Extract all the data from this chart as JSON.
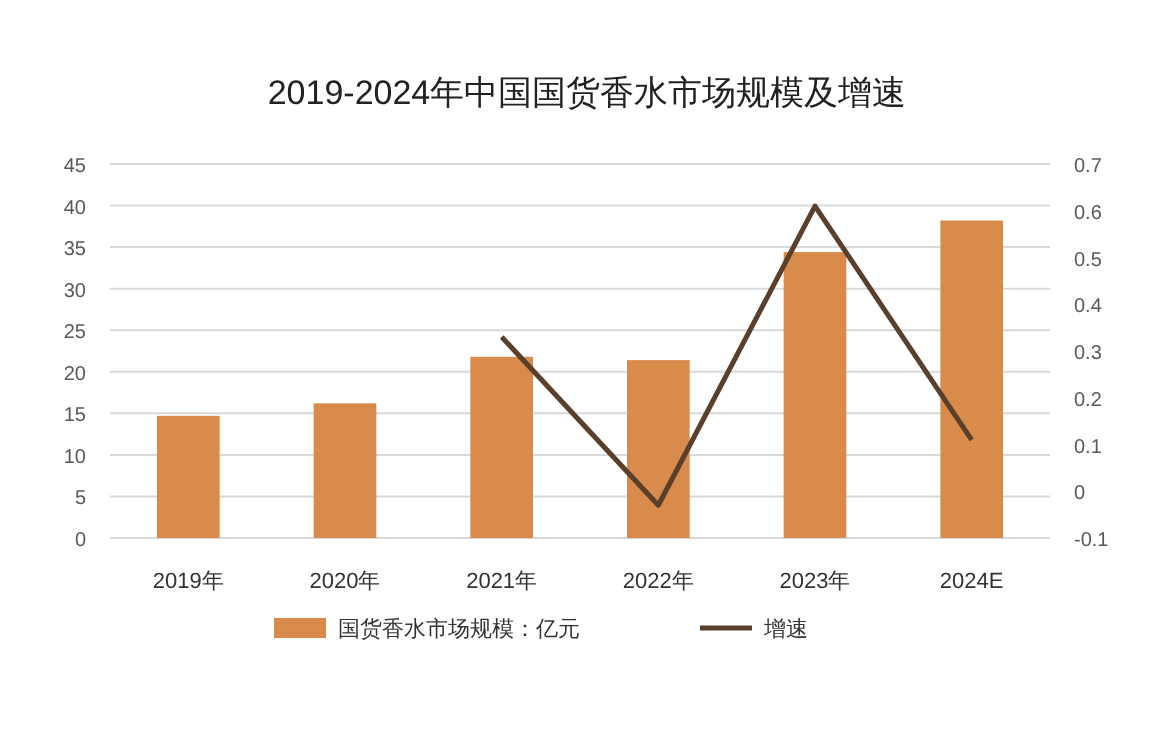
{
  "chart_data": {
    "type": "bar",
    "title": "2019-2024年中国国货香水市场规模及增速",
    "categories": [
      "2019年",
      "2020年",
      "2021年",
      "2022年",
      "2023年",
      "2024E"
    ],
    "series": [
      {
        "name": "国货香水市场规模：亿元",
        "color": "#d98b4c",
        "values": [
          14.7,
          16.2,
          21.8,
          21.4,
          34.4,
          38.2
        ]
      },
      {
        "name": "增速",
        "type": "line",
        "axis": "y2",
        "color": "#5a3f2b",
        "values": [
          null,
          null,
          0.33,
          -0.03,
          0.61,
          0.11
        ]
      }
    ],
    "ylim": [
      0,
      45
    ],
    "yticks": [
      0,
      5,
      10,
      15,
      20,
      25,
      30,
      35,
      40,
      45
    ],
    "y2lim": [
      -0.1,
      0.7
    ],
    "y2ticks": [
      -0.1,
      0,
      0.1,
      0.2,
      0.3,
      0.4,
      0.5,
      0.6,
      0.7
    ],
    "grid": "y",
    "legend": "bottom"
  }
}
